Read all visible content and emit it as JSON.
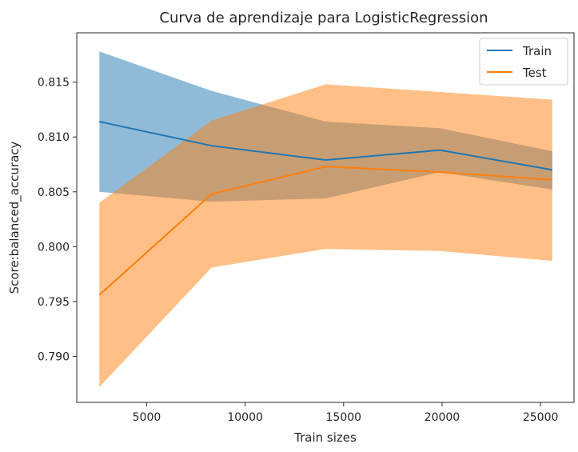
{
  "chart_data": {
    "type": "line",
    "title": "Curva de aprendizaje para LogisticRegression",
    "xlabel": "Train sizes",
    "ylabel": "Score:balanced_accuracy",
    "xlim": [
      1450,
      26700
    ],
    "ylim": [
      0.7858,
      0.8195
    ],
    "xticks": [
      5000,
      10000,
      15000,
      20000,
      25000
    ],
    "yticks": [
      0.79,
      0.795,
      0.8,
      0.805,
      0.81,
      0.815
    ],
    "ytick_labels": [
      "0.790",
      "0.795",
      "0.800",
      "0.805",
      "0.810",
      "0.815"
    ],
    "grid": false,
    "legend": "top-right",
    "x": [
      2600,
      8300,
      14100,
      19900,
      25600
    ],
    "series": [
      {
        "name": "Train",
        "color": "#1f77b4",
        "band_color": "#1f77b4",
        "band_opacity": 0.5,
        "mean": [
          0.8114,
          0.8092,
          0.8079,
          0.8088,
          0.807
        ],
        "upper": [
          0.8178,
          0.8142,
          0.8114,
          0.8108,
          0.8087
        ],
        "lower": [
          0.805,
          0.8041,
          0.8044,
          0.8068,
          0.8052
        ]
      },
      {
        "name": "Test",
        "color": "#ff7f0e",
        "band_color": "#ff7f0e",
        "band_opacity": 0.5,
        "mean": [
          0.7956,
          0.8048,
          0.8073,
          0.8068,
          0.8061
        ],
        "upper": [
          0.804,
          0.8115,
          0.8148,
          0.8141,
          0.8134
        ],
        "lower": [
          0.7872,
          0.7981,
          0.7998,
          0.7996,
          0.7987
        ]
      }
    ]
  }
}
